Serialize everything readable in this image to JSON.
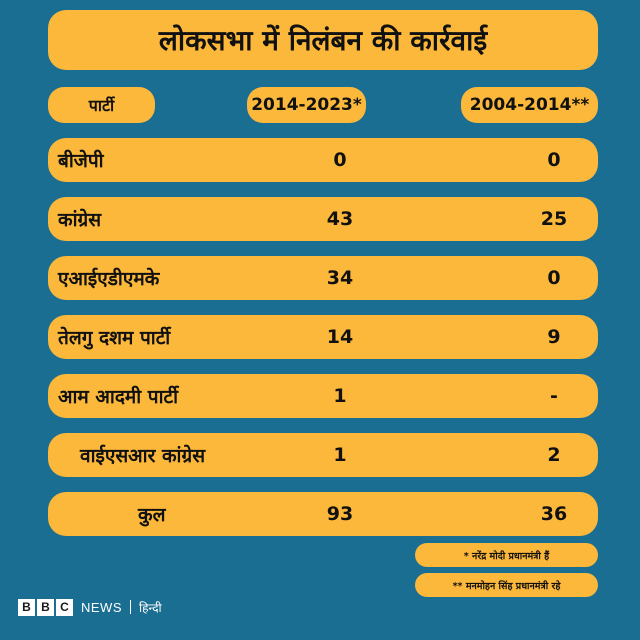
{
  "title": "लोकसभा में निलंबन की कार्रवाई",
  "headers": {
    "party": "पार्टी",
    "period_a": "2014-2023*",
    "period_b": "2004-2014**"
  },
  "rows": [
    {
      "party": "बीजेपी",
      "a": "0",
      "b": "0"
    },
    {
      "party": "कांग्रेस",
      "a": "43",
      "b": "25"
    },
    {
      "party": "एआईएडीएमके",
      "a": "34",
      "b": "0"
    },
    {
      "party": "तेलगु दशम पार्टी",
      "a": "14",
      "b": "9"
    },
    {
      "party": "आम आदमी पार्टी",
      "a": "1",
      "b": "-"
    },
    {
      "party": "वाईएसआर कांग्रेस",
      "a": "1",
      "b": "2"
    }
  ],
  "total": {
    "label": "कुल",
    "a": "93",
    "b": "36"
  },
  "notes": {
    "note_a": "* नरेंद्र मोदी प्रधानमंत्री हैं",
    "note_b": "** मनमोहन सिंह प्रधानमंत्री रहे"
  },
  "logo": {
    "letters": [
      "B",
      "B",
      "C"
    ],
    "news": "NEWS",
    "language": "हिन्दी"
  },
  "colors": {
    "background": "#1a6e92",
    "pill": "#fcb83a"
  },
  "chart_data": {
    "type": "table",
    "columns": [
      "पार्टी",
      "2014-2023*",
      "2004-2014**"
    ],
    "rows": [
      [
        "बीजेपी",
        "0",
        "0"
      ],
      [
        "कांग्रेस",
        "43",
        "25"
      ],
      [
        "एआईएडीएमके",
        "34",
        "0"
      ],
      [
        "तेलगु दशम पार्टी",
        "14",
        "9"
      ],
      [
        "आम आदमी पार्टी",
        "1",
        "-"
      ],
      [
        "वाईएसआर कांग्रेस",
        "1",
        "2"
      ],
      [
        "कुल",
        "93",
        "36"
      ]
    ]
  }
}
